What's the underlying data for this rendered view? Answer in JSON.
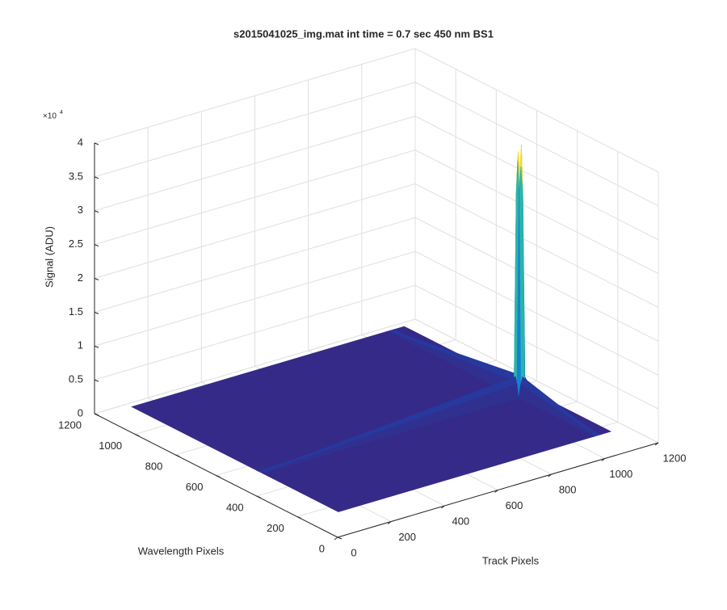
{
  "chart_data": {
    "type": "surface",
    "title": "s2015041025_img.mat int time = 0.7 sec  450 nm BS1",
    "x_label": "Track Pixels",
    "y_label": "Wavelength Pixels",
    "z_label": "Signal (ADU)",
    "z_multiplier": {
      "base": "×10",
      "exponent": "4"
    },
    "xlim": [
      0,
      1200
    ],
    "xticks": [
      0,
      200,
      400,
      600,
      800,
      1000,
      1200
    ],
    "ylim": [
      0,
      1200
    ],
    "yticks": [
      0,
      200,
      400,
      600,
      800,
      1000,
      1200
    ],
    "zlim": [
      0,
      4
    ],
    "zticks": [
      0,
      0.5,
      1,
      1.5,
      2,
      2.5,
      3,
      3.5,
      4
    ],
    "grid": true,
    "colormap": [
      "#352a87",
      "#0363e1",
      "#1485d4",
      "#06a7c6",
      "#38b99e",
      "#92bf73",
      "#d9ba56",
      "#fcce2e",
      "#f9fb0e"
    ],
    "x": [
      120,
      1075,
      1083,
      1090,
      1097,
      1105,
      1140
    ],
    "y": [
      155,
      525,
      533,
      540,
      547,
      555,
      1175
    ],
    "z": [
      [
        0,
        0,
        0,
        0,
        0,
        0,
        0
      ],
      [
        0,
        0,
        0.2,
        0.3,
        0.2,
        0,
        0
      ],
      [
        0,
        0.2,
        3.1,
        3.4,
        3.0,
        0.2,
        0
      ],
      [
        0,
        0.3,
        3.5,
        3.3,
        3.7,
        0.3,
        0
      ],
      [
        0,
        0.2,
        3.0,
        3.6,
        3.2,
        0.2,
        0
      ],
      [
        0,
        0,
        0.2,
        0.3,
        0.2,
        0,
        0
      ],
      [
        0,
        0,
        0,
        0,
        0,
        0,
        0
      ]
    ]
  }
}
